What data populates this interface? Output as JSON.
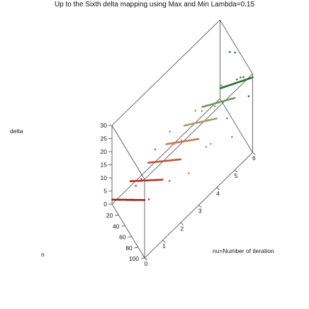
{
  "chart_data": {
    "type": "scatter",
    "title": "Up to the Sixth delta mapping using Max and Min   Lambda=0.15",
    "zlabel": "delta",
    "xlabel": "n",
    "ylabel": "nu=Number of iteration",
    "z_ticks": [
      "30",
      "25",
      "20",
      "15",
      "10",
      "5",
      "0"
    ],
    "z_range": [
      0,
      30
    ],
    "n_ticks": [
      "20",
      "40",
      "60",
      "80",
      "100"
    ],
    "n_range": [
      0,
      100
    ],
    "nu_ticks": [
      "0",
      "1",
      "2",
      "3",
      "4",
      "5",
      "6"
    ],
    "nu_range": [
      0,
      6
    ],
    "series": [
      {
        "nu": 0,
        "color": "#9e1b14"
      },
      {
        "nu": 1,
        "color": "#b8322a"
      },
      {
        "nu": 2,
        "color": "#c9523e"
      },
      {
        "nu": 3,
        "color": "#c97a58"
      },
      {
        "nu": 4,
        "color": "#a99a6a"
      },
      {
        "nu": 5,
        "color": "#6f9a5c"
      },
      {
        "nu": 6,
        "color": "#2f6e36"
      }
    ],
    "scattered_points": [
      [
        30,
        6,
        24
      ],
      [
        52,
        6,
        18
      ],
      [
        72,
        6,
        23
      ],
      [
        88,
        6,
        19
      ],
      [
        46,
        6,
        27
      ],
      [
        63,
        6,
        21
      ],
      [
        40,
        5,
        12
      ],
      [
        77,
        5,
        15
      ],
      [
        60,
        5,
        24
      ],
      [
        92,
        5,
        11
      ],
      [
        35,
        4,
        16
      ],
      [
        68,
        4,
        9
      ],
      [
        55,
        4,
        20
      ],
      [
        82,
        4,
        13
      ],
      [
        25,
        3,
        8
      ],
      [
        48,
        3,
        14
      ],
      [
        70,
        3,
        6
      ],
      [
        12,
        3,
        10
      ],
      [
        44,
        2,
        5
      ],
      [
        22,
        2,
        12
      ],
      [
        66,
        2,
        9
      ],
      [
        18,
        1,
        4
      ],
      [
        58,
        1,
        7
      ],
      [
        35,
        1,
        10
      ]
    ],
    "legend": "none",
    "grid": false
  }
}
